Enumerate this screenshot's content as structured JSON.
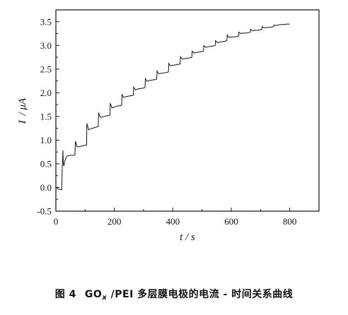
{
  "chart_data": {
    "type": "line",
    "xlabel": {
      "symbol": "t",
      "unit": "s"
    },
    "ylabel": {
      "symbol": "I",
      "unit": "μA"
    },
    "xlim": [
      0,
      900
    ],
    "ylim": [
      -0.5,
      3.75
    ],
    "xticks": [
      "0",
      "200",
      "400",
      "600",
      "800"
    ],
    "yticks": [
      "-0.5",
      "0.0",
      "0.5",
      "1.0",
      "1.5",
      "2.0",
      "2.5",
      "3.0",
      "3.5"
    ],
    "grid": false,
    "legend": "none",
    "series": [
      {
        "color": "#111111",
        "x": [
          0,
          5,
          10,
          15,
          20,
          22,
          24,
          25,
          27,
          30,
          35,
          40,
          50,
          60,
          65,
          67,
          72,
          80,
          90,
          100,
          105,
          106,
          112,
          120,
          130,
          140,
          145,
          146,
          152,
          160,
          170,
          180,
          185,
          186,
          192,
          200,
          210,
          220,
          225,
          226,
          232,
          240,
          250,
          260,
          265,
          266,
          272,
          280,
          290,
          300,
          305,
          306,
          312,
          320,
          330,
          340,
          345,
          346,
          352,
          360,
          370,
          380,
          385,
          386,
          392,
          400,
          410,
          420,
          425,
          426,
          432,
          440,
          450,
          460,
          465,
          466,
          472,
          480,
          490,
          500,
          505,
          506,
          512,
          520,
          530,
          540,
          545,
          546,
          552,
          560,
          570,
          580,
          585,
          586,
          592,
          600,
          610,
          620,
          625,
          626,
          632,
          640,
          650,
          660,
          665,
          666,
          672,
          680,
          690,
          700,
          705,
          706,
          712,
          720,
          730,
          740,
          745,
          746,
          752,
          760,
          770,
          780,
          790,
          800
        ],
        "y": [
          0.0,
          -0.02,
          -0.04,
          -0.04,
          -0.05,
          0.45,
          0.78,
          0.55,
          0.45,
          0.55,
          0.64,
          0.67,
          0.68,
          0.68,
          0.69,
          0.98,
          0.86,
          0.86,
          0.88,
          0.89,
          0.9,
          1.35,
          1.22,
          1.24,
          1.26,
          1.28,
          1.29,
          1.58,
          1.48,
          1.49,
          1.51,
          1.52,
          1.53,
          1.78,
          1.68,
          1.7,
          1.72,
          1.73,
          1.74,
          1.96,
          1.9,
          1.92,
          1.93,
          1.94,
          1.95,
          2.12,
          2.06,
          2.08,
          2.09,
          2.1,
          2.11,
          2.3,
          2.24,
          2.26,
          2.27,
          2.28,
          2.29,
          2.46,
          2.4,
          2.41,
          2.42,
          2.43,
          2.44,
          2.62,
          2.57,
          2.58,
          2.59,
          2.6,
          2.61,
          2.76,
          2.71,
          2.72,
          2.73,
          2.74,
          2.75,
          2.88,
          2.84,
          2.85,
          2.86,
          2.87,
          2.88,
          3.0,
          2.96,
          2.97,
          2.98,
          2.99,
          3.0,
          3.1,
          3.06,
          3.07,
          3.08,
          3.09,
          3.1,
          3.22,
          3.17,
          3.18,
          3.18,
          3.19,
          3.2,
          3.28,
          3.25,
          3.26,
          3.26,
          3.27,
          3.28,
          3.34,
          3.31,
          3.32,
          3.32,
          3.33,
          3.34,
          3.4,
          3.37,
          3.38,
          3.38,
          3.39,
          3.4,
          3.43,
          3.42,
          3.43,
          3.44,
          3.44,
          3.45,
          3.45
        ]
      }
    ]
  },
  "caption": {
    "fig_no": "图 4",
    "main": "GO",
    "sub": "x",
    "rest": " /PEI 多层膜电极的电流 - 时间关系曲线"
  }
}
